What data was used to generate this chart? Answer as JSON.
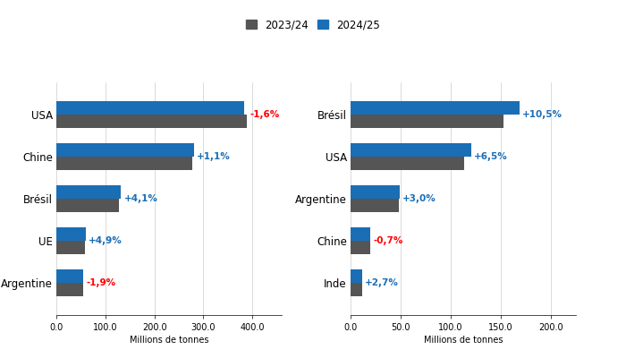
{
  "corn": {
    "categories": [
      "USA",
      "Chine",
      "Brésil",
      "UE",
      "Argentine"
    ],
    "values_2324": [
      389.7,
      277.2,
      127.0,
      58.0,
      55.0
    ],
    "values_2425": [
      383.5,
      280.2,
      132.2,
      60.8,
      53.9
    ],
    "changes": [
      "-1,6%",
      "+1,1%",
      "+4,1%",
      "+4,9%",
      "-1,9%"
    ],
    "change_colors": [
      "red",
      "#1a6eb5",
      "#1a6eb5",
      "#1a6eb5",
      "red"
    ],
    "xlabel": "Millions de tonnes",
    "xlim": [
      0,
      460
    ],
    "xticks": [
      0,
      100,
      200,
      300,
      400
    ]
  },
  "soy": {
    "categories": [
      "Brésil",
      "USA",
      "Argentine",
      "Chine",
      "Inde"
    ],
    "values_2324": [
      153.0,
      113.3,
      48.0,
      20.0,
      11.5
    ],
    "values_2425": [
      169.0,
      120.6,
      49.4,
      19.8,
      11.8
    ],
    "changes": [
      "+10,5%",
      "+6,5%",
      "+3,0%",
      "-0,7%",
      "+2,7%"
    ],
    "change_colors": [
      "#1a6eb5",
      "#1a6eb5",
      "#1a6eb5",
      "red",
      "#1a6eb5"
    ],
    "xlabel": "Millions de tonnes",
    "xlim": [
      0,
      225
    ],
    "xticks": [
      0,
      50,
      100,
      150,
      200
    ]
  },
  "color_2324": "#555555",
  "color_2425": "#1a6eb5",
  "legend_label_2324": "2023/24",
  "legend_label_2425": "2024/25",
  "background_color": "#ffffff",
  "bar_height": 0.32
}
